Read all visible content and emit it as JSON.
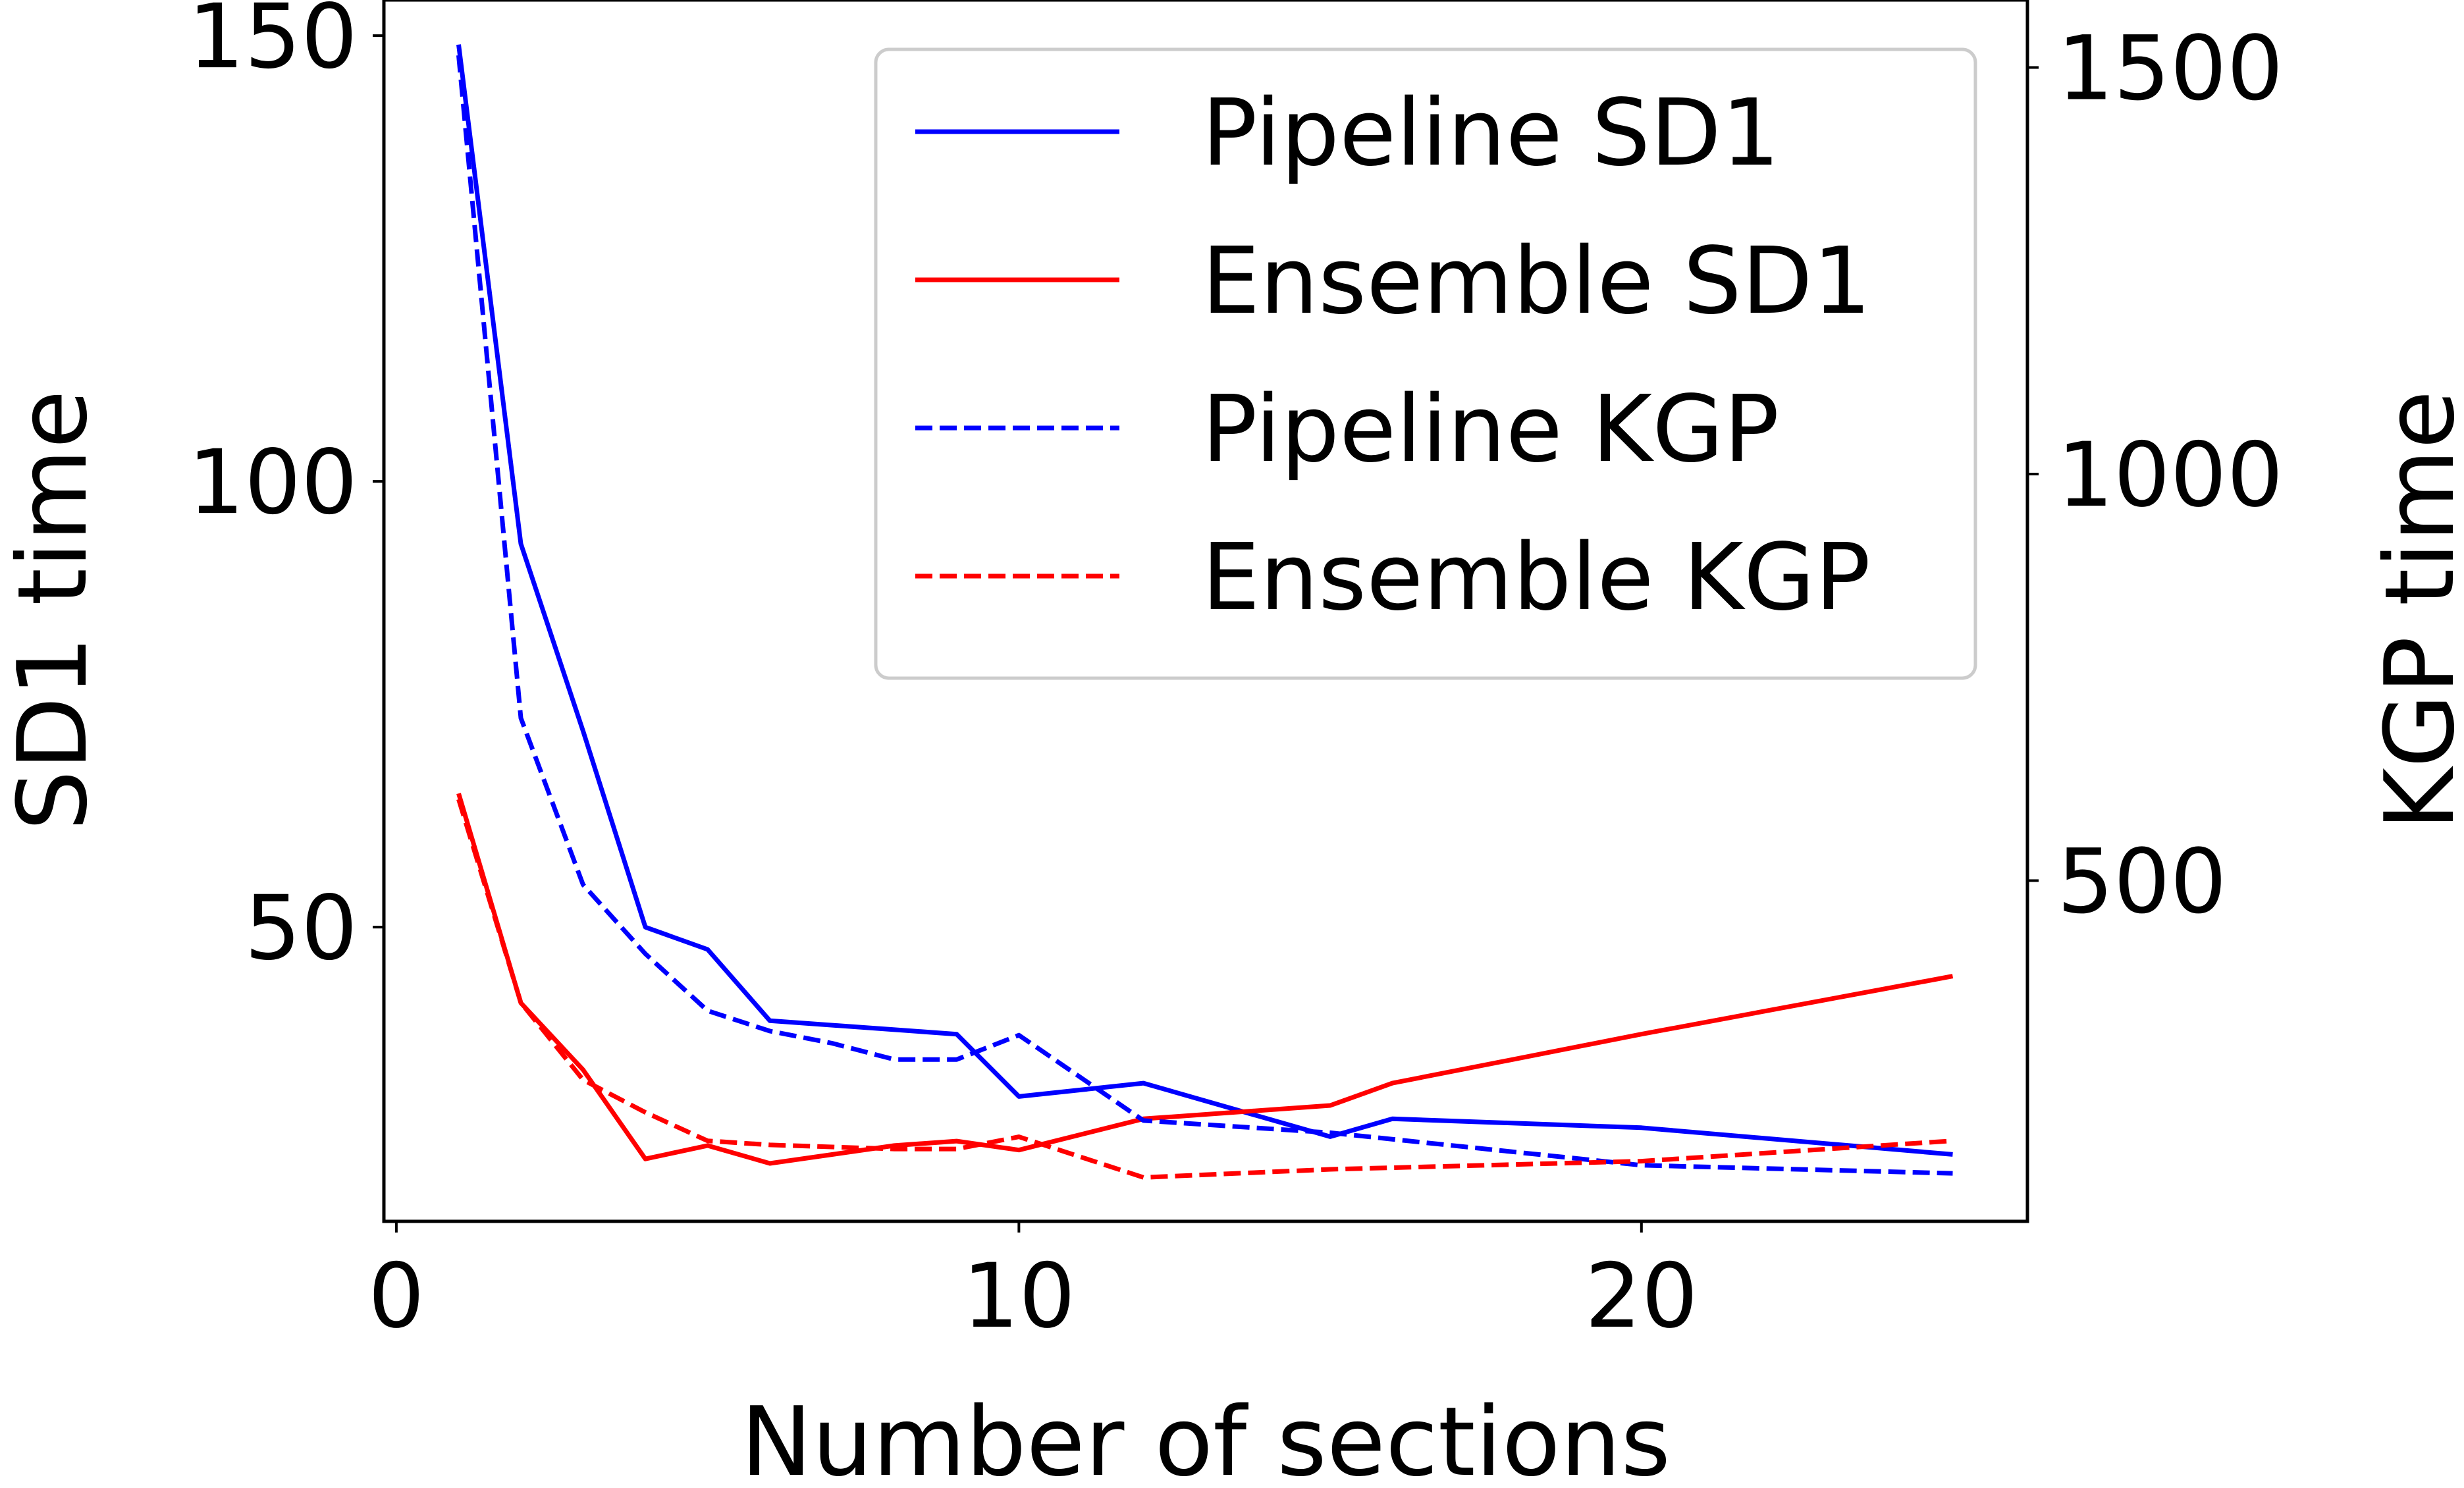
{
  "chart_data": {
    "type": "line",
    "title": "",
    "xlabel": "Number of sections",
    "ylabel_left": "SD1 time",
    "ylabel_right": "KGP time",
    "xlim": [
      -0.2,
      26.2
    ],
    "ylim_left": [
      17,
      154
    ],
    "ylim_right": [
      81,
      1583
    ],
    "xticks": [
      0,
      10,
      20
    ],
    "yticks_left": [
      50,
      100,
      150
    ],
    "yticks_right": [
      500,
      1000,
      1500
    ],
    "grid": false,
    "legend": {
      "position": "top-right"
    },
    "series": [
      {
        "name": "Pipeline SD1",
        "axis": "left",
        "color": "#0000ff",
        "dash": "solid",
        "x": [
          1,
          2,
          3,
          4,
          5,
          6,
          8,
          9,
          10,
          12,
          15,
          16,
          20,
          25
        ],
        "y": [
          149,
          93,
          72,
          50,
          47.5,
          39.5,
          38.5,
          38,
          31,
          32.5,
          26.5,
          28.5,
          27.5,
          24.5
        ]
      },
      {
        "name": "Ensemble SD1",
        "axis": "left",
        "color": "#ff0000",
        "dash": "solid",
        "x": [
          1,
          2,
          3,
          4,
          5,
          6,
          8,
          9,
          10,
          12,
          15,
          16,
          20,
          25
        ],
        "y": [
          65,
          41.5,
          34,
          24,
          25.5,
          23.5,
          25.5,
          26,
          25,
          28.5,
          30,
          32.5,
          38,
          44.5
        ]
      },
      {
        "name": "Pipeline KGP",
        "axis": "right",
        "color": "#0000ff",
        "dash": "dashed",
        "x": [
          1,
          2,
          3,
          4,
          5,
          6,
          7,
          8,
          9,
          10,
          12,
          15,
          20,
          25
        ],
        "y": [
          1515,
          700,
          495,
          410,
          340,
          315,
          300,
          280,
          280,
          310,
          205,
          190,
          150,
          140
        ]
      },
      {
        "name": "Ensemble KGP",
        "axis": "right",
        "color": "#ff0000",
        "dash": "dashed",
        "x": [
          1,
          2,
          3,
          4,
          5,
          6,
          8,
          9,
          10,
          12,
          15,
          20,
          25
        ],
        "y": [
          600,
          350,
          255,
          215,
          180,
          175,
          170,
          170,
          185,
          135,
          145,
          155,
          180
        ]
      }
    ]
  }
}
